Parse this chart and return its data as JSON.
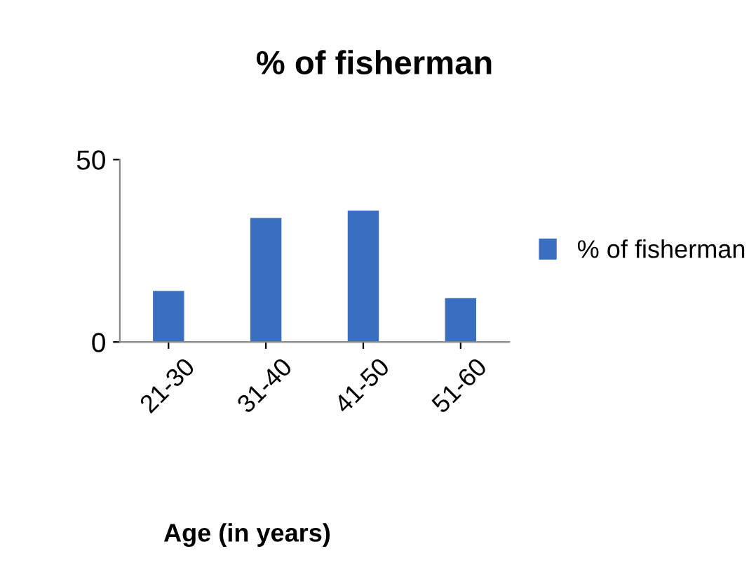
{
  "chart_data": {
    "type": "bar",
    "title": "% of fisherman",
    "xlabel": "Age (in years)",
    "categories": [
      "21-30",
      "31-40",
      "41-50",
      "51-60"
    ],
    "series": [
      {
        "name": "% of fisherman",
        "color": "#3a6fbf",
        "values": [
          14,
          34,
          36,
          12
        ]
      }
    ],
    "ylim": [
      0,
      50
    ],
    "yticks": [
      0,
      50
    ],
    "grid": false,
    "legend": "right"
  }
}
